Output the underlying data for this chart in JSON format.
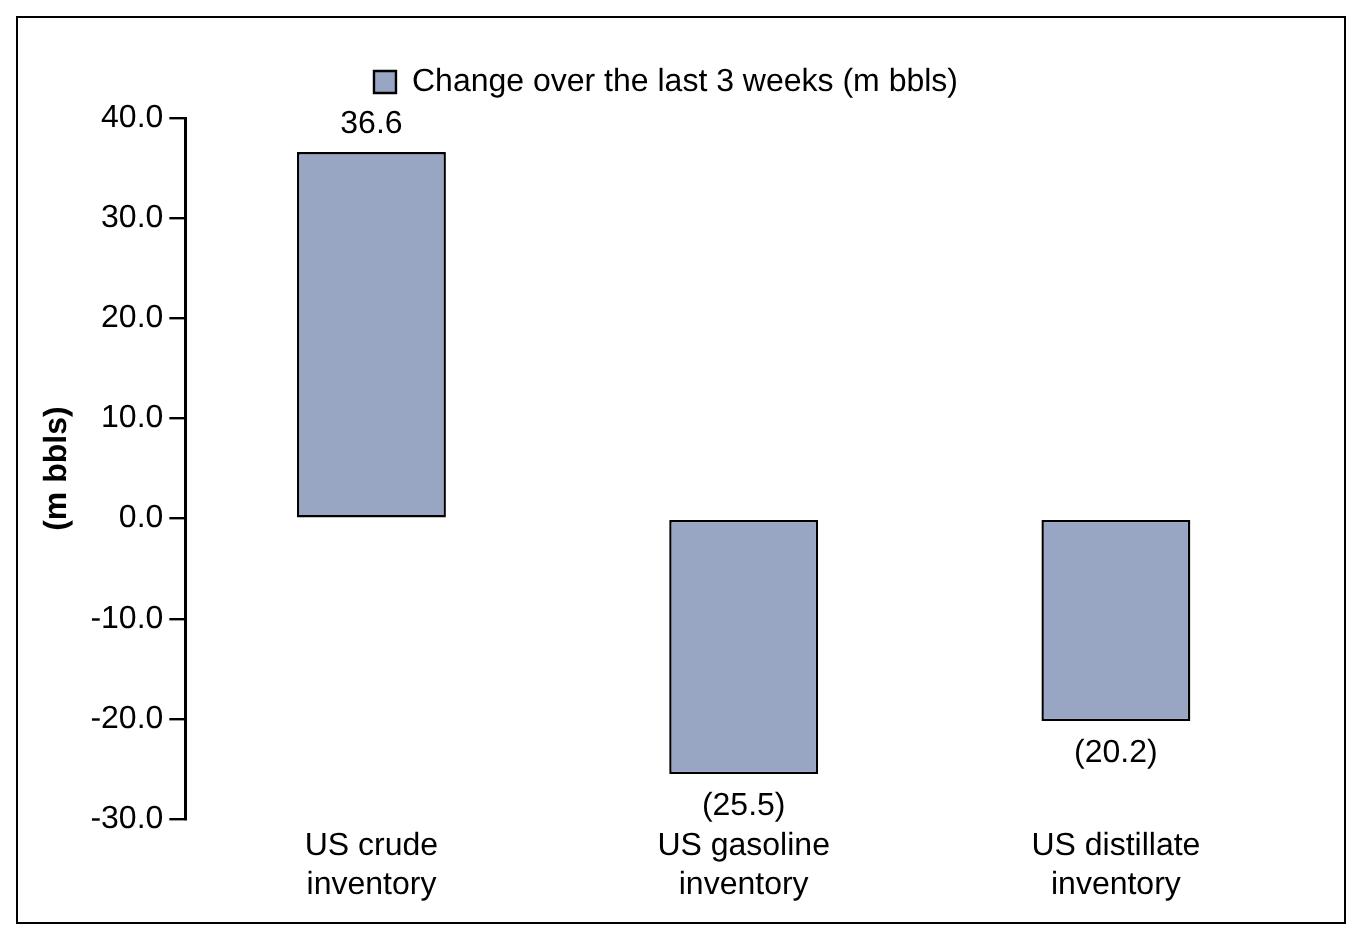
{
  "chart_data": {
    "type": "bar",
    "ylabel": "(m bbls)",
    "categories": [
      "US crude inventory",
      "US gasoline inventory",
      "US distillate inventory"
    ],
    "series": [
      {
        "name": "Change over the last 3 weeks (m bbls)",
        "color": "#98a6c4",
        "values": [
          36.6,
          -25.5,
          -20.2
        ],
        "value_labels": [
          "36.6",
          "(25.5)",
          "(20.2)"
        ]
      }
    ],
    "ylim": [
      -30,
      40
    ],
    "yticks": [
      {
        "value": -30,
        "label": "-30.0"
      },
      {
        "value": -20,
        "label": "-20.0"
      },
      {
        "value": -10,
        "label": "-10.0"
      },
      {
        "value": 0,
        "label": "0.0"
      },
      {
        "value": 10,
        "label": "10.0"
      },
      {
        "value": 20,
        "label": "20.0"
      },
      {
        "value": 30,
        "label": "30.0"
      },
      {
        "value": 40,
        "label": "40.0"
      }
    ],
    "grid": false,
    "legend": "top"
  }
}
